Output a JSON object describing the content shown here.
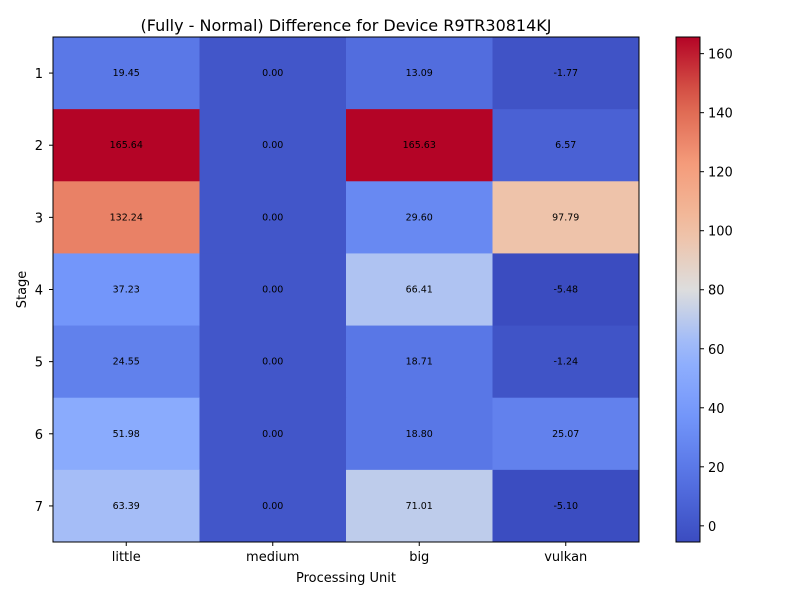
{
  "chart_data": {
    "type": "heatmap",
    "title": "(Fully - Normal) Difference for Device R9TR30814KJ",
    "xlabel": "Processing Unit",
    "ylabel": "Stage",
    "columns": [
      "little",
      "medium",
      "big",
      "vulkan"
    ],
    "rows": [
      "1",
      "2",
      "3",
      "4",
      "5",
      "6",
      "7"
    ],
    "values": [
      [
        19.45,
        0.0,
        13.09,
        -1.77
      ],
      [
        165.64,
        0.0,
        165.63,
        6.57
      ],
      [
        132.24,
        0.0,
        29.6,
        97.79
      ],
      [
        37.23,
        0.0,
        66.41,
        -5.48
      ],
      [
        24.55,
        0.0,
        18.71,
        -1.24
      ],
      [
        51.98,
        0.0,
        18.8,
        25.07
      ],
      [
        63.39,
        0.0,
        71.01,
        -5.1
      ]
    ],
    "value_labels": [
      [
        "19.45",
        "0.00",
        "13.09",
        "-1.77"
      ],
      [
        "165.64",
        "0.00",
        "165.63",
        "6.57"
      ],
      [
        "132.24",
        "0.00",
        "29.60",
        "97.79"
      ],
      [
        "37.23",
        "0.00",
        "66.41",
        "-5.48"
      ],
      [
        "24.55",
        "0.00",
        "18.71",
        "-1.24"
      ],
      [
        "51.98",
        "0.00",
        "18.80",
        "25.07"
      ],
      [
        "63.39",
        "0.00",
        "71.01",
        "-5.10"
      ]
    ],
    "colormap": "coolwarm",
    "vmin": -5.48,
    "vmax": 165.64,
    "colorbar_ticks": [
      0,
      20,
      40,
      60,
      80,
      100,
      120,
      140,
      160
    ],
    "colorbar_tick_labels": [
      "0",
      "20",
      "40",
      "60",
      "80",
      "100",
      "120",
      "140",
      "160"
    ],
    "colorbar": true,
    "grid": false
  }
}
